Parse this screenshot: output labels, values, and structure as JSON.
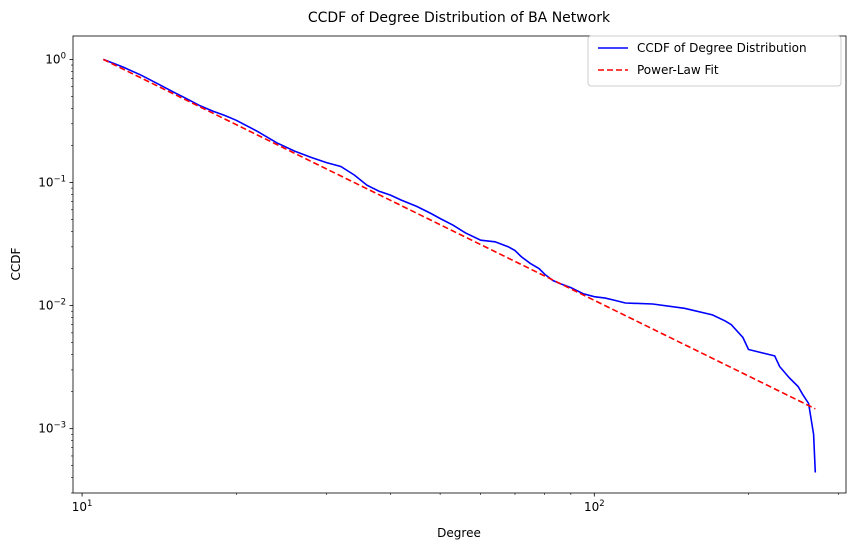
{
  "chart_data": {
    "type": "line",
    "title": "CCDF of Degree Distribution of BA Network",
    "xlabel": "Degree",
    "ylabel": "CCDF",
    "xscale": "log",
    "yscale": "log",
    "xlim": [
      9.6,
      310
    ],
    "ylim": [
      0.0003,
      1.55
    ],
    "grid": false,
    "legend_position": "top-right",
    "x_tick_labels": [
      {
        "value": 10,
        "base": "10",
        "exp": "1"
      },
      {
        "value": 100,
        "base": "10",
        "exp": "2"
      }
    ],
    "y_tick_labels": [
      {
        "value": 1,
        "base": "10",
        "exp": "0"
      },
      {
        "value": 0.1,
        "base": "10",
        "exp": "−1"
      },
      {
        "value": 0.01,
        "base": "10",
        "exp": "−2"
      },
      {
        "value": 0.001,
        "base": "10",
        "exp": "−3"
      }
    ],
    "series": [
      {
        "name": "CCDF of Degree Distribution",
        "color": "#0000ff",
        "style": "solid",
        "x": [
          11,
          12,
          13,
          14,
          15,
          16,
          17,
          18,
          19,
          20,
          22,
          24,
          26,
          28,
          30,
          32,
          34,
          36,
          38,
          40,
          42,
          45,
          48,
          50,
          53,
          56,
          60,
          64,
          68,
          70,
          72,
          75,
          78,
          80,
          83,
          86,
          90,
          95,
          100,
          105,
          110,
          115,
          130,
          150,
          170,
          180,
          185,
          195,
          200,
          225,
          230,
          240,
          250,
          255,
          262,
          268,
          270
        ],
        "y": [
          1.0,
          0.87,
          0.75,
          0.64,
          0.55,
          0.48,
          0.42,
          0.38,
          0.35,
          0.32,
          0.26,
          0.21,
          0.18,
          0.16,
          0.145,
          0.135,
          0.115,
          0.095,
          0.085,
          0.079,
          0.072,
          0.064,
          0.056,
          0.051,
          0.045,
          0.039,
          0.034,
          0.033,
          0.03,
          0.028,
          0.025,
          0.022,
          0.02,
          0.018,
          0.016,
          0.015,
          0.014,
          0.0125,
          0.0118,
          0.0115,
          0.011,
          0.0105,
          0.0103,
          0.0095,
          0.0084,
          0.0075,
          0.007,
          0.0055,
          0.0044,
          0.0039,
          0.0032,
          0.0026,
          0.0022,
          0.0019,
          0.0016,
          0.0009,
          0.00044
        ]
      },
      {
        "name": "Power-Law Fit",
        "color": "#ff0000",
        "style": "dashed",
        "x": [
          11,
          270
        ],
        "y": [
          1.0,
          0.00145
        ]
      }
    ]
  }
}
